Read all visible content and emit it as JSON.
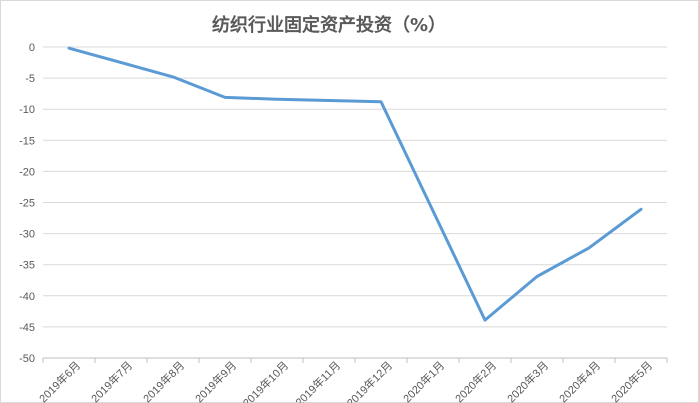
{
  "chart_data": {
    "type": "line",
    "title": "纺织行业固定资产投资（%）",
    "categories": [
      "2019年6月",
      "2019年7月",
      "2019年8月",
      "2019年9月",
      "2019年10月",
      "2019年11月",
      "2019年12月",
      "2020年1月",
      "2020年2月",
      "2020年3月",
      "2020年4月",
      "2020年5月"
    ],
    "series": [
      {
        "color": "#5b9bd5",
        "values": [
          -0.2,
          null,
          -4.8,
          -8.1,
          -8.4,
          -8.6,
          -8.8,
          null,
          -43.9,
          -36.9,
          -32.3,
          -26.1
        ]
      }
    ],
    "ylim": [
      -50,
      0
    ],
    "yticks": [
      "0",
      "-5",
      "-10",
      "-15",
      "-20",
      "-25",
      "-30",
      "-35",
      "-40",
      "-45",
      "-50"
    ],
    "grid": true,
    "legend": "none"
  }
}
